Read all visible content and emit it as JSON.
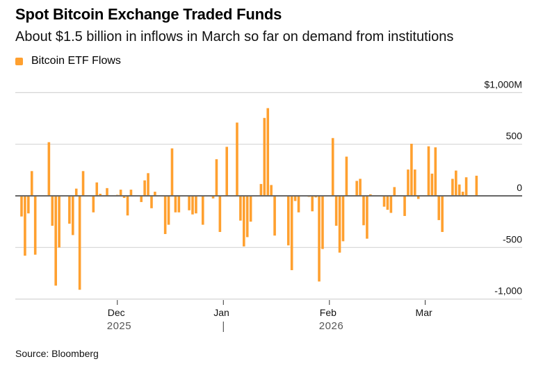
{
  "title": "Spot Bitcoin Exchange Traded Funds",
  "subtitle": "About $1.5 billion in inflows in March so far on demand from institutions",
  "legend": [
    {
      "label": "Bitcoin ETF Flows",
      "color": "#FFA02F"
    }
  ],
  "source": "Source: Bloomberg",
  "colors": {
    "bar": "#FFA02F",
    "zero_line": "#666666",
    "grid": "#d4d4d4"
  },
  "chart_data": {
    "type": "bar",
    "title": "Spot Bitcoin Exchange Traded Funds",
    "subtitle": "About $1.5 billion in inflows in March so far on demand from institutions",
    "xlabel": "",
    "ylabel": "",
    "y_unit": "$M",
    "ylim": [
      -1000,
      1000
    ],
    "yticks": [
      {
        "value": 1000,
        "label": "$1,000M"
      },
      {
        "value": 500,
        "label": "500"
      },
      {
        "value": 0,
        "label": "0"
      },
      {
        "value": -500,
        "label": "-500"
      },
      {
        "value": -1000,
        "label": "-1,000"
      }
    ],
    "grid": true,
    "legend_position": "top-left",
    "x_start_date": "2025-11-03",
    "x_end_date": "2026-03-21",
    "xticks": [
      {
        "day": 28,
        "label": "Dec",
        "year": "2025"
      },
      {
        "day": 59,
        "label": "Jan",
        "year_divider": true
      },
      {
        "day": 90,
        "label": "Feb",
        "year": "2026"
      },
      {
        "day": 118,
        "label": "Mar"
      }
    ],
    "series": [
      {
        "name": "Bitcoin ETF Flows",
        "points": [
          {
            "day": 0,
            "value": -200
          },
          {
            "day": 1,
            "value": -580
          },
          {
            "day": 2,
            "value": -170
          },
          {
            "day": 3,
            "value": 240
          },
          {
            "day": 4,
            "value": -570
          },
          {
            "day": 8,
            "value": 520
          },
          {
            "day": 9,
            "value": -290
          },
          {
            "day": 10,
            "value": -870
          },
          {
            "day": 11,
            "value": -500
          },
          {
            "day": 14,
            "value": -270
          },
          {
            "day": 15,
            "value": -380
          },
          {
            "day": 16,
            "value": 70
          },
          {
            "day": 17,
            "value": -910
          },
          {
            "day": 18,
            "value": 240
          },
          {
            "day": 21,
            "value": -160
          },
          {
            "day": 22,
            "value": 130
          },
          {
            "day": 23,
            "value": 20
          },
          {
            "day": 25,
            "value": 75
          },
          {
            "day": 28,
            "value": 10
          },
          {
            "day": 29,
            "value": 60
          },
          {
            "day": 30,
            "value": -20
          },
          {
            "day": 31,
            "value": -190
          },
          {
            "day": 32,
            "value": 60
          },
          {
            "day": 35,
            "value": -60
          },
          {
            "day": 36,
            "value": 150
          },
          {
            "day": 37,
            "value": 220
          },
          {
            "day": 38,
            "value": -120
          },
          {
            "day": 39,
            "value": 40
          },
          {
            "day": 42,
            "value": -370
          },
          {
            "day": 43,
            "value": -280
          },
          {
            "day": 44,
            "value": 460
          },
          {
            "day": 45,
            "value": -160
          },
          {
            "day": 46,
            "value": -160
          },
          {
            "day": 49,
            "value": -140
          },
          {
            "day": 50,
            "value": -180
          },
          {
            "day": 51,
            "value": -170
          },
          {
            "day": 53,
            "value": -280
          },
          {
            "day": 56,
            "value": -25
          },
          {
            "day": 57,
            "value": 355
          },
          {
            "day": 58,
            "value": -350
          },
          {
            "day": 60,
            "value": 475
          },
          {
            "day": 63,
            "value": 710
          },
          {
            "day": 64,
            "value": -240
          },
          {
            "day": 65,
            "value": -490
          },
          {
            "day": 66,
            "value": -400
          },
          {
            "day": 67,
            "value": -250
          },
          {
            "day": 70,
            "value": 115
          },
          {
            "day": 71,
            "value": 755
          },
          {
            "day": 72,
            "value": 850
          },
          {
            "day": 73,
            "value": 105
          },
          {
            "day": 74,
            "value": -385
          },
          {
            "day": 78,
            "value": -480
          },
          {
            "day": 79,
            "value": -720
          },
          {
            "day": 80,
            "value": -50
          },
          {
            "day": 81,
            "value": -160
          },
          {
            "day": 84,
            "value": -10
          },
          {
            "day": 85,
            "value": -150
          },
          {
            "day": 86,
            "value": -15
          },
          {
            "day": 87,
            "value": -830
          },
          {
            "day": 88,
            "value": -515
          },
          {
            "day": 91,
            "value": 560
          },
          {
            "day": 92,
            "value": -290
          },
          {
            "day": 93,
            "value": -550
          },
          {
            "day": 94,
            "value": -440
          },
          {
            "day": 95,
            "value": 380
          },
          {
            "day": 98,
            "value": 145
          },
          {
            "day": 99,
            "value": 165
          },
          {
            "day": 100,
            "value": -285
          },
          {
            "day": 101,
            "value": -415
          },
          {
            "day": 102,
            "value": 15
          },
          {
            "day": 106,
            "value": -105
          },
          {
            "day": 107,
            "value": -135
          },
          {
            "day": 108,
            "value": -165
          },
          {
            "day": 109,
            "value": 85
          },
          {
            "day": 112,
            "value": -195
          },
          {
            "day": 113,
            "value": 255
          },
          {
            "day": 114,
            "value": 505
          },
          {
            "day": 115,
            "value": 255
          },
          {
            "day": 116,
            "value": -30
          },
          {
            "day": 119,
            "value": 480
          },
          {
            "day": 120,
            "value": 215
          },
          {
            "day": 121,
            "value": 470
          },
          {
            "day": 122,
            "value": -235
          },
          {
            "day": 123,
            "value": -350
          },
          {
            "day": 126,
            "value": 165
          },
          {
            "day": 127,
            "value": 245
          },
          {
            "day": 128,
            "value": 110
          },
          {
            "day": 129,
            "value": 40
          },
          {
            "day": 130,
            "value": 180
          },
          {
            "day": 133,
            "value": 195
          }
        ]
      }
    ]
  }
}
